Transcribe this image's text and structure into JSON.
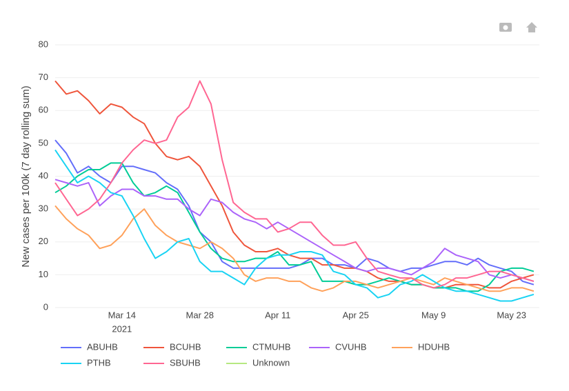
{
  "chart_data": {
    "type": "line",
    "y_label": "New cases per 100k (7 day rolling sum)",
    "x": [
      "2021-03-02",
      "2021-03-04",
      "2021-03-06",
      "2021-03-08",
      "2021-03-10",
      "2021-03-12",
      "2021-03-14",
      "2021-03-16",
      "2021-03-18",
      "2021-03-20",
      "2021-03-22",
      "2021-03-24",
      "2021-03-26",
      "2021-03-28",
      "2021-03-30",
      "2021-04-01",
      "2021-04-03",
      "2021-04-05",
      "2021-04-07",
      "2021-04-09",
      "2021-04-11",
      "2021-04-13",
      "2021-04-15",
      "2021-04-17",
      "2021-04-19",
      "2021-04-21",
      "2021-04-23",
      "2021-04-25",
      "2021-04-27",
      "2021-04-29",
      "2021-05-01",
      "2021-05-03",
      "2021-05-05",
      "2021-05-07",
      "2021-05-09",
      "2021-05-11",
      "2021-05-13",
      "2021-05-15",
      "2021-05-17",
      "2021-05-19",
      "2021-05-21",
      "2021-05-23",
      "2021-05-25",
      "2021-05-27"
    ],
    "xlim": [
      "2021-03-02",
      "2021-05-28"
    ],
    "xticks": [
      {
        "value": "2021-03-14",
        "label": "Mar 14"
      },
      {
        "value": "2021-03-28",
        "label": "Mar 28"
      },
      {
        "value": "2021-04-11",
        "label": "Apr 11"
      },
      {
        "value": "2021-04-25",
        "label": "Apr 25"
      },
      {
        "value": "2021-05-09",
        "label": "May 9"
      },
      {
        "value": "2021-05-23",
        "label": "May 23"
      }
    ],
    "x_year_label": "2021",
    "ylim": [
      0,
      80
    ],
    "yticks": [
      0,
      10,
      20,
      30,
      40,
      50,
      60,
      70,
      80
    ],
    "grid": true,
    "series": [
      {
        "name": "ABUHB",
        "color": "#636efa",
        "values": [
          51,
          47,
          41,
          43,
          40,
          38,
          43,
          43,
          42,
          41,
          38,
          36,
          31,
          23,
          20,
          14,
          12,
          12,
          12,
          12,
          12,
          12,
          13,
          15,
          15,
          13,
          13,
          12,
          15,
          14,
          12,
          11,
          12,
          12,
          13,
          14,
          14,
          13,
          15,
          13,
          12,
          11,
          8,
          7
        ]
      },
      {
        "name": "BCUHB",
        "color": "#ef553b",
        "values": [
          69,
          65,
          66,
          63,
          59,
          62,
          61,
          58,
          56,
          50,
          46,
          45,
          46,
          43,
          37,
          31,
          23,
          19,
          17,
          17,
          18,
          16,
          15,
          15,
          13,
          13,
          12,
          12,
          11,
          9,
          8,
          8,
          7,
          7,
          6,
          6,
          7,
          7,
          7,
          6,
          6,
          8,
          9,
          10
        ]
      },
      {
        "name": "CTMUHB",
        "color": "#00cc96",
        "values": [
          35,
          37,
          40,
          42,
          42,
          44,
          44,
          38,
          34,
          35,
          37,
          35,
          29,
          23,
          18,
          15,
          14,
          14,
          15,
          15,
          17,
          13,
          13,
          14,
          8,
          8,
          8,
          7,
          7,
          8,
          9,
          8,
          7,
          7,
          6,
          6,
          6,
          5,
          5,
          7,
          11,
          12,
          12,
          11
        ]
      },
      {
        "name": "CVUHB",
        "color": "#ab63fa",
        "values": [
          39,
          38,
          37,
          38,
          31,
          34,
          36,
          36,
          34,
          34,
          33,
          33,
          30,
          28,
          33,
          32,
          29,
          27,
          26,
          24,
          26,
          24,
          22,
          20,
          18,
          16,
          14,
          12,
          11,
          12,
          12,
          11,
          10,
          12,
          14,
          18,
          16,
          15,
          14,
          10,
          9,
          10,
          9,
          8
        ]
      },
      {
        "name": "HDUHB",
        "color": "#ffa15a",
        "values": [
          31,
          27,
          24,
          22,
          18,
          19,
          22,
          27,
          30,
          25,
          22,
          20,
          19,
          18,
          20,
          18,
          15,
          10,
          8,
          9,
          9,
          8,
          8,
          6,
          5,
          6,
          8,
          8,
          7,
          6,
          7,
          8,
          9,
          8,
          7,
          9,
          8,
          7,
          6,
          5,
          5,
          6,
          6,
          5
        ]
      },
      {
        "name": "PTHB",
        "color": "#19d3f3",
        "values": [
          48,
          43,
          38,
          40,
          38,
          35,
          34,
          28,
          21,
          15,
          17,
          20,
          21,
          14,
          11,
          11,
          9,
          7,
          12,
          15,
          16,
          16,
          17,
          17,
          16,
          11,
          10,
          7,
          6,
          3,
          4,
          7,
          8,
          10,
          8,
          6,
          5,
          5,
          4,
          3,
          2,
          2,
          3,
          4
        ]
      },
      {
        "name": "SBUHB",
        "color": "#ff6692",
        "values": [
          38,
          33,
          28,
          30,
          33,
          38,
          44,
          48,
          51,
          50,
          51,
          58,
          61,
          69,
          62,
          45,
          32,
          29,
          27,
          27,
          23,
          24,
          26,
          26,
          22,
          19,
          19,
          20,
          15,
          11,
          10,
          9,
          9,
          7,
          6,
          7,
          9,
          9,
          10,
          11,
          11,
          10,
          9,
          8
        ]
      },
      {
        "name": "Unknown",
        "color": "#b6e880",
        "values": [
          null,
          null,
          null,
          null,
          null,
          null,
          null,
          null,
          null,
          null,
          null,
          null,
          null,
          null,
          null,
          null,
          null,
          null,
          null,
          null,
          null,
          null,
          null,
          null,
          null,
          null,
          null,
          null,
          null,
          null,
          null,
          null,
          null,
          null,
          null,
          null,
          null,
          null,
          null,
          null,
          null,
          null,
          null,
          null
        ]
      }
    ]
  }
}
